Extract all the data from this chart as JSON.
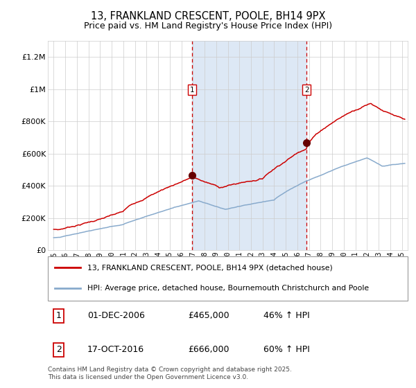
{
  "title": "13, FRANKLAND CRESCENT, POOLE, BH14 9PX",
  "subtitle": "Price paid vs. HM Land Registry's House Price Index (HPI)",
  "title_fontsize": 10.5,
  "subtitle_fontsize": 9,
  "bg_color": "#ffffff",
  "plot_bg_color": "#ffffff",
  "grid_color": "#cccccc",
  "line1_color": "#cc0000",
  "line2_color": "#88aacc",
  "shading_color": "#dde8f5",
  "vline_color": "#cc0000",
  "marker_color": "#660000",
  "marker_size": 7,
  "sale1_year": 2006.92,
  "sale1_price": 465000,
  "sale1_label": "1",
  "sale2_year": 2016.79,
  "sale2_price": 666000,
  "sale2_label": "2",
  "ylim": [
    0,
    1300000
  ],
  "yticks": [
    0,
    200000,
    400000,
    600000,
    800000,
    1000000,
    1200000
  ],
  "ytick_labels": [
    "£0",
    "£200K",
    "£400K",
    "£600K",
    "£800K",
    "£1M",
    "£1.2M"
  ],
  "legend1": "13, FRANKLAND CRESCENT, POOLE, BH14 9PX (detached house)",
  "legend2": "HPI: Average price, detached house, Bournemouth Christchurch and Poole",
  "footer": "Contains HM Land Registry data © Crown copyright and database right 2025.\nThis data is licensed under the Open Government Licence v3.0.",
  "table_row1": [
    "1",
    "01-DEC-2006",
    "£465,000",
    "46% ↑ HPI"
  ],
  "table_row2": [
    "2",
    "17-OCT-2016",
    "£666,000",
    "60% ↑ HPI"
  ]
}
